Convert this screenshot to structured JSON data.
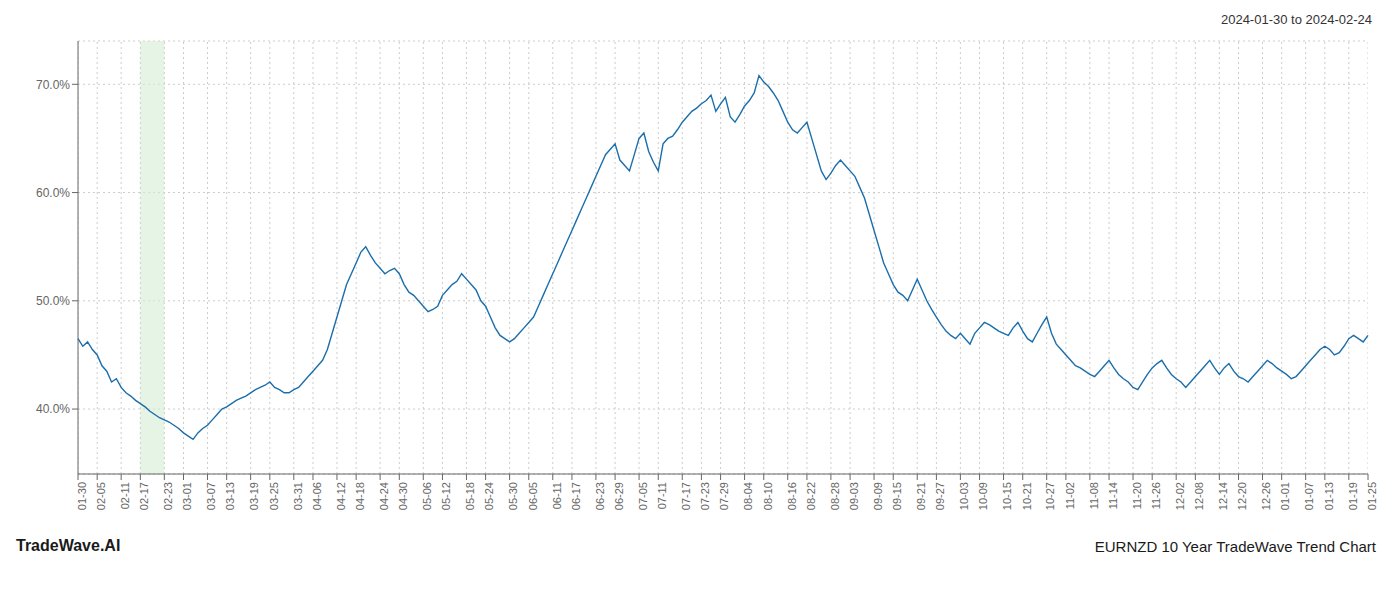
{
  "chart_data": {
    "type": "line",
    "title": "EURNZD 10 Year TradeWave Trend Chart",
    "subtitle": "2024-01-30 to 2024-02-24",
    "annotation": "TradeWave.AI",
    "categories": [
      "01-30",
      null,
      null,
      null,
      "02-05",
      null,
      null,
      null,
      null,
      "02-11",
      null,
      null,
      null,
      "02-17",
      null,
      null,
      null,
      null,
      "02-23",
      null,
      null,
      null,
      "03-01",
      null,
      null,
      null,
      null,
      "03-07",
      null,
      null,
      null,
      "03-13",
      null,
      null,
      null,
      null,
      "03-19",
      null,
      null,
      null,
      "03-25",
      null,
      null,
      null,
      null,
      "03-31",
      null,
      null,
      null,
      "04-06",
      null,
      null,
      null,
      null,
      "04-12",
      null,
      null,
      null,
      "04-18",
      null,
      null,
      null,
      null,
      "04-24",
      null,
      null,
      null,
      "04-30",
      null,
      null,
      null,
      null,
      "05-06",
      null,
      null,
      null,
      "05-12",
      null,
      null,
      null,
      null,
      "05-18",
      null,
      null,
      null,
      "05-24",
      null,
      null,
      null,
      null,
      "05-30",
      null,
      null,
      null,
      "06-05",
      null,
      null,
      null,
      null,
      "06-11",
      null,
      null,
      null,
      "06-17",
      null,
      null,
      null,
      null,
      "06-23",
      null,
      null,
      null,
      "06-29",
      null,
      null,
      null,
      null,
      "07-05",
      null,
      null,
      null,
      "07-11",
      null,
      null,
      null,
      null,
      "07-17",
      null,
      null,
      null,
      "07-23",
      null,
      null,
      null,
      "07-29",
      null,
      null,
      null,
      null,
      "08-04",
      null,
      null,
      null,
      "08-10",
      null,
      null,
      null,
      null,
      "08-16",
      null,
      null,
      null,
      "08-22",
      null,
      null,
      null,
      null,
      "08-28",
      null,
      null,
      null,
      "09-03",
      null,
      null,
      null,
      null,
      "09-09",
      null,
      null,
      null,
      "09-15",
      null,
      null,
      null,
      null,
      "09-21",
      null,
      null,
      null,
      "09-27",
      null,
      null,
      null,
      null,
      "10-03",
      null,
      null,
      null,
      "10-09",
      null,
      null,
      null,
      null,
      "10-15",
      null,
      null,
      null,
      "10-21",
      null,
      null,
      null,
      null,
      "10-27",
      null,
      null,
      null,
      "11-02",
      null,
      null,
      null,
      null,
      "11-08",
      null,
      null,
      null,
      "11-14",
      null,
      null,
      null,
      null,
      "11-20",
      null,
      null,
      null,
      "11-26",
      null,
      null,
      null,
      null,
      "12-02",
      null,
      null,
      null,
      "12-08",
      null,
      null,
      null,
      null,
      "12-14",
      null,
      null,
      null,
      "12-20",
      null,
      null,
      null,
      null,
      "12-26",
      null,
      null,
      null,
      "01-01",
      null,
      null,
      null,
      null,
      "01-07",
      null,
      null,
      null,
      "01-13",
      null,
      null,
      null,
      null,
      "01-19",
      null,
      null,
      null,
      "01-25"
    ],
    "values": [
      46.5,
      45.8,
      46.2,
      45.5,
      45.0,
      44.0,
      43.5,
      42.5,
      42.8,
      42.0,
      41.5,
      41.2,
      40.8,
      40.5,
      40.2,
      39.8,
      39.5,
      39.2,
      39.0,
      38.8,
      38.5,
      38.2,
      37.8,
      37.5,
      37.2,
      37.8,
      38.2,
      38.5,
      39.0,
      39.5,
      40.0,
      40.2,
      40.5,
      40.8,
      41.0,
      41.2,
      41.5,
      41.8,
      42.0,
      42.2,
      42.5,
      42.0,
      41.8,
      41.5,
      41.5,
      41.8,
      42.0,
      42.5,
      43.0,
      43.5,
      44.0,
      44.5,
      45.5,
      47.0,
      48.5,
      50.0,
      51.5,
      52.5,
      53.5,
      54.5,
      55.0,
      54.2,
      53.5,
      53.0,
      52.5,
      52.8,
      53.0,
      52.5,
      51.5,
      50.8,
      50.5,
      50.0,
      49.5,
      49.0,
      49.2,
      49.5,
      50.5,
      51.0,
      51.5,
      51.8,
      52.5,
      52.0,
      51.5,
      51.0,
      50.0,
      49.5,
      48.5,
      47.5,
      46.8,
      46.5,
      46.2,
      46.5,
      47.0,
      47.5,
      48.0,
      48.5,
      49.5,
      50.5,
      51.5,
      52.5,
      53.5,
      54.5,
      55.5,
      56.5,
      57.5,
      58.5,
      59.5,
      60.5,
      61.5,
      62.5,
      63.5,
      64.0,
      64.5,
      63.0,
      62.5,
      62.0,
      63.5,
      65.0,
      65.5,
      63.8,
      62.8,
      62.0,
      64.5,
      65.0,
      65.2,
      65.8,
      66.5,
      67.0,
      67.5,
      67.8,
      68.2,
      68.5,
      69.0,
      67.5,
      68.2,
      68.8,
      67.0,
      66.5,
      67.2,
      68.0,
      68.5,
      69.2,
      70.8,
      70.2,
      69.8,
      69.2,
      68.5,
      67.5,
      66.5,
      65.8,
      65.5,
      66.0,
      66.5,
      65.0,
      63.5,
      62.0,
      61.2,
      61.8,
      62.5,
      63.0,
      62.5,
      62.0,
      61.5,
      60.5,
      59.5,
      58.0,
      56.5,
      55.0,
      53.5,
      52.5,
      51.5,
      50.8,
      50.5,
      50.0,
      51.0,
      52.0,
      51.0,
      50.0,
      49.2,
      48.5,
      47.8,
      47.2,
      46.8,
      46.5,
      47.0,
      46.5,
      46.0,
      47.0,
      47.5,
      48.0,
      47.8,
      47.5,
      47.2,
      47.0,
      46.8,
      47.5,
      48.0,
      47.2,
      46.5,
      46.2,
      47.0,
      47.8,
      48.5,
      47.0,
      46.0,
      45.5,
      45.0,
      44.5,
      44.0,
      43.8,
      43.5,
      43.2,
      43.0,
      43.5,
      44.0,
      44.5,
      43.8,
      43.2,
      42.8,
      42.5,
      42.0,
      41.8,
      42.5,
      43.2,
      43.8,
      44.2,
      44.5,
      43.8,
      43.2,
      42.8,
      42.5,
      42.0,
      42.5,
      43.0,
      43.5,
      44.0,
      44.5,
      43.8,
      43.2,
      43.8,
      44.2,
      43.5,
      43.0,
      42.8,
      42.5,
      43.0,
      43.5,
      44.0,
      44.5,
      44.2,
      43.8,
      43.5,
      43.2,
      42.8,
      43.0,
      43.5,
      44.0,
      44.5,
      45.0,
      45.5,
      45.8,
      45.5,
      45.0,
      45.2,
      45.8,
      46.5,
      46.8,
      46.5,
      46.2,
      46.8
    ],
    "color": "#1b6eab",
    "ylim": [
      34,
      74
    ],
    "yticks": [
      {
        "value": 40,
        "label": "40.0%"
      },
      {
        "value": 50,
        "label": "50.0%"
      },
      {
        "value": 60,
        "label": "60.0%"
      },
      {
        "value": 70,
        "label": "70.0%"
      }
    ],
    "grid": true,
    "highlight": {
      "from": "02-17",
      "to": "02-23",
      "color": "#d6edd6"
    }
  }
}
